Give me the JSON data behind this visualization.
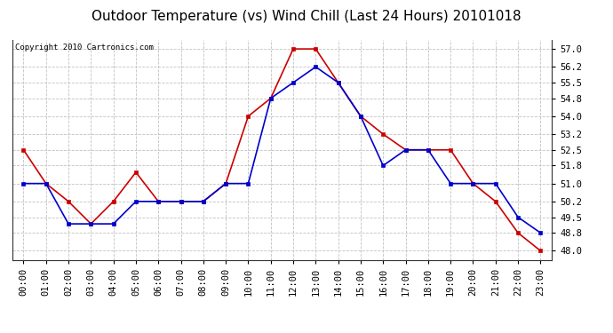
{
  "title": "Outdoor Temperature (vs) Wind Chill (Last 24 Hours) 20101018",
  "copyright": "Copyright 2010 Cartronics.com",
  "x_labels": [
    "00:00",
    "01:00",
    "02:00",
    "03:00",
    "04:00",
    "05:00",
    "06:00",
    "07:00",
    "08:00",
    "09:00",
    "10:00",
    "11:00",
    "12:00",
    "13:00",
    "14:00",
    "15:00",
    "16:00",
    "17:00",
    "18:00",
    "19:00",
    "20:00",
    "21:00",
    "22:00",
    "23:00"
  ],
  "outdoor_temp": [
    52.5,
    51.0,
    50.2,
    49.2,
    50.2,
    51.5,
    50.2,
    50.2,
    50.2,
    51.0,
    54.0,
    54.8,
    57.0,
    57.0,
    55.5,
    54.0,
    53.2,
    52.5,
    52.5,
    52.5,
    51.0,
    50.2,
    48.8,
    48.0
  ],
  "wind_chill": [
    51.0,
    51.0,
    49.2,
    49.2,
    49.2,
    50.2,
    50.2,
    50.2,
    50.2,
    51.0,
    51.0,
    54.8,
    55.5,
    56.2,
    55.5,
    54.0,
    51.8,
    52.5,
    52.5,
    51.0,
    51.0,
    51.0,
    49.5,
    48.8
  ],
  "temp_color": "#cc0000",
  "wind_chill_color": "#0000cc",
  "background_color": "#ffffff",
  "grid_color": "#bbbbbb",
  "ylim": [
    47.6,
    57.4
  ],
  "yticks": [
    48.0,
    48.8,
    49.5,
    50.2,
    51.0,
    51.8,
    52.5,
    53.2,
    54.0,
    54.8,
    55.5,
    56.2,
    57.0
  ],
  "title_fontsize": 11,
  "copyright_fontsize": 6.5,
  "tick_fontsize": 7.5,
  "marker_size": 3,
  "line_width": 1.2
}
